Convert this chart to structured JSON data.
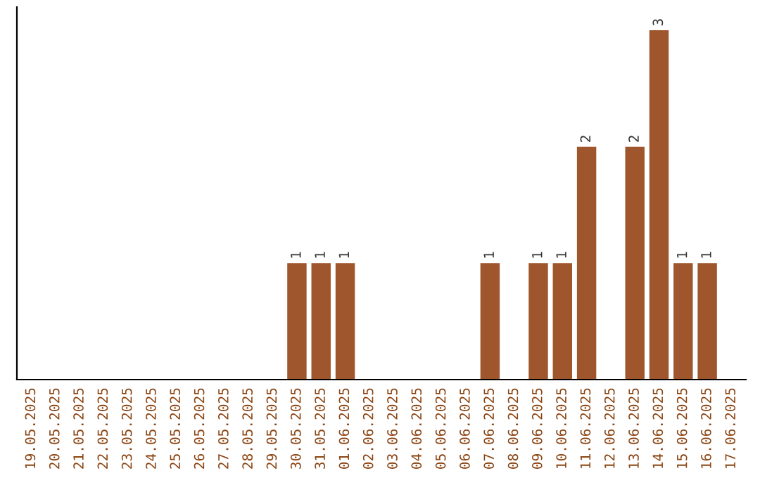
{
  "chart_data": {
    "type": "bar",
    "categories": [
      "19.05.2025",
      "20.05.2025",
      "21.05.2025",
      "22.05.2025",
      "23.05.2025",
      "24.05.2025",
      "25.05.2025",
      "26.05.2025",
      "27.05.2025",
      "28.05.2025",
      "29.05.2025",
      "30.05.2025",
      "31.05.2025",
      "01.06.2025",
      "02.06.2025",
      "03.06.2025",
      "04.06.2025",
      "05.06.2025",
      "06.06.2025",
      "07.06.2025",
      "08.06.2025",
      "09.06.2025",
      "10.06.2025",
      "11.06.2025",
      "12.06.2025",
      "13.06.2025",
      "14.06.2025",
      "15.06.2025",
      "16.06.2025",
      "17.06.2025"
    ],
    "values": [
      0,
      0,
      0,
      0,
      0,
      0,
      0,
      0,
      0,
      0,
      0,
      1,
      1,
      1,
      0,
      0,
      0,
      0,
      0,
      1,
      0,
      1,
      1,
      2,
      0,
      2,
      3,
      1,
      1,
      0
    ],
    "value_labels": [
      null,
      null,
      null,
      null,
      null,
      null,
      null,
      null,
      null,
      null,
      null,
      "1",
      "1",
      "1",
      null,
      null,
      null,
      null,
      null,
      "1",
      null,
      "1",
      "1",
      "2",
      null,
      "2",
      "3",
      "1",
      "1",
      null
    ],
    "color": "#a0562c",
    "ylim": [
      0,
      3.2
    ],
    "tick_labels": "x",
    "grid": false
  }
}
